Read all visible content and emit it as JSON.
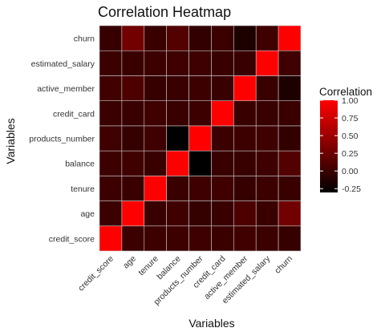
{
  "chart_data": {
    "type": "heatmap",
    "title": "Correlation Heatmap",
    "xlabel": "Variables",
    "ylabel": "Variables",
    "variables": [
      "credit_score",
      "age",
      "tenure",
      "balance",
      "products_number",
      "credit_card",
      "active_member",
      "estimated_salary",
      "churn"
    ],
    "values": [
      [
        1.0,
        -0.004,
        0.001,
        0.006,
        0.012,
        -0.005,
        0.026,
        -0.001,
        -0.027
      ],
      [
        -0.004,
        1.0,
        -0.01,
        0.028,
        -0.031,
        -0.012,
        0.085,
        -0.007,
        0.285
      ],
      [
        0.001,
        -0.01,
        1.0,
        -0.012,
        0.013,
        0.023,
        -0.028,
        0.008,
        -0.014
      ],
      [
        0.006,
        0.028,
        -0.012,
        1.0,
        -0.304,
        -0.015,
        -0.01,
        0.013,
        0.119
      ],
      [
        0.012,
        -0.031,
        0.013,
        -0.304,
        1.0,
        0.003,
        0.01,
        0.014,
        -0.048
      ],
      [
        -0.005,
        -0.012,
        0.023,
        -0.015,
        0.003,
        1.0,
        -0.012,
        -0.01,
        -0.007
      ],
      [
        0.026,
        0.085,
        -0.028,
        -0.01,
        0.01,
        -0.012,
        1.0,
        -0.011,
        -0.156
      ],
      [
        -0.001,
        -0.007,
        0.008,
        0.013,
        0.014,
        -0.01,
        -0.011,
        1.0,
        0.012
      ],
      [
        -0.027,
        0.285,
        -0.014,
        0.119,
        -0.048,
        -0.007,
        -0.156,
        0.012,
        1.0
      ]
    ],
    "legend": {
      "title": "Correlation",
      "ticks": [
        1.0,
        0.75,
        0.5,
        0.25,
        0.0,
        -0.25
      ],
      "tick_labels": [
        "1.00",
        "0.75",
        "0.50",
        "0.25",
        "0.00",
        "-0.25"
      ],
      "range": [
        -0.304,
        1.0
      ],
      "position": "right"
    },
    "colors": {
      "low": "#000000",
      "high": "#ff0000",
      "panel_background": "#ffffff",
      "tile_border": "#cccccc"
    },
    "grid": false
  }
}
